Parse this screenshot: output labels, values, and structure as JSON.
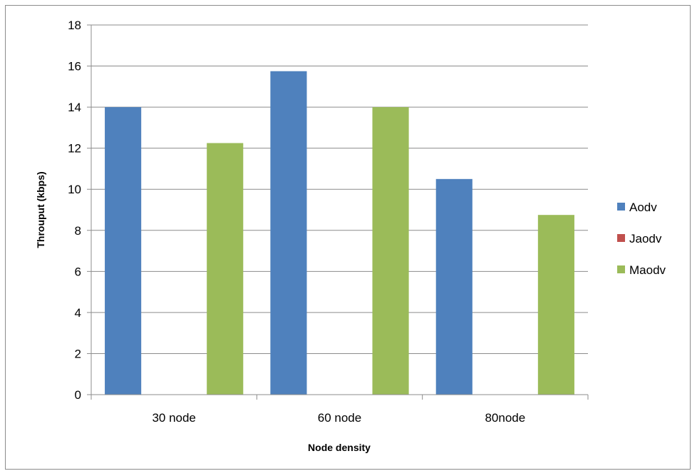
{
  "chart_data": {
    "type": "bar",
    "title": "",
    "xlabel": "Node density",
    "ylabel": "Throuput (kbps)",
    "categories": [
      "30 node",
      "60 node",
      "80node"
    ],
    "series": [
      {
        "name": "Aodv",
        "values": [
          14,
          15.75,
          10.5
        ],
        "color": "#4f81bd"
      },
      {
        "name": "Jaodv",
        "values": [
          0,
          0,
          0
        ],
        "color": "#c0504d"
      },
      {
        "name": "Maodv",
        "values": [
          12.25,
          14,
          8.75
        ],
        "color": "#9bbb59"
      }
    ],
    "ylim": [
      0,
      18
    ],
    "yticks": [
      0,
      2,
      4,
      6,
      8,
      10,
      12,
      14,
      16,
      18
    ],
    "grid": true,
    "legend": "right"
  }
}
